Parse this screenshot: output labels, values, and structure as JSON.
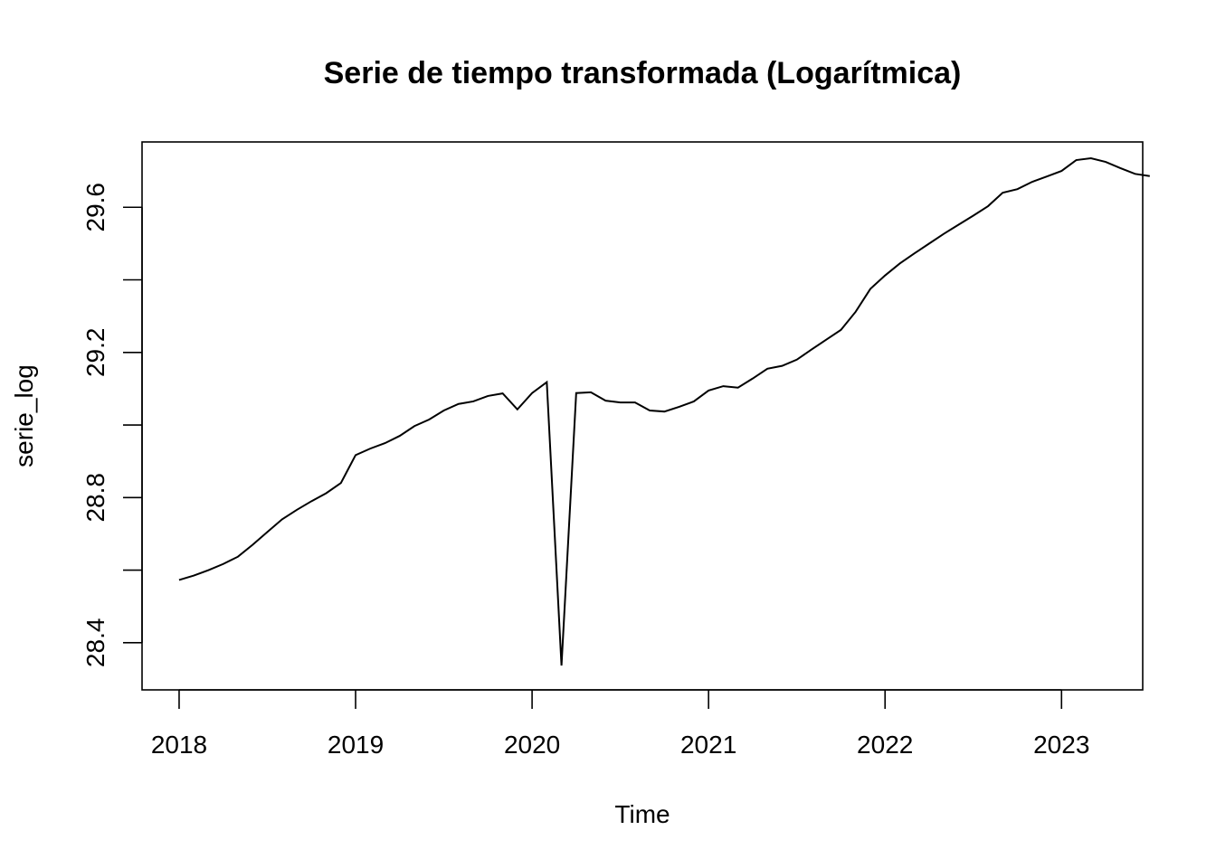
{
  "chart_data": {
    "type": "line",
    "title": "Serie de tiempo transformada (Logarítmica)",
    "xlabel": "Time",
    "ylabel": "serie_log",
    "xlim": [
      2017.79,
      2023.46
    ],
    "ylim": [
      28.27,
      29.78
    ],
    "x_ticks": [
      2018,
      2019,
      2020,
      2021,
      2022,
      2023
    ],
    "x_tick_labels": [
      "2018",
      "2019",
      "2020",
      "2021",
      "2022",
      "2023"
    ],
    "y_ticks": [
      28.4,
      28.6,
      28.8,
      29.0,
      29.2,
      29.4,
      29.6
    ],
    "y_tick_labels": [
      "28.4",
      "",
      "28.8",
      "",
      "29.2",
      "",
      "29.6"
    ],
    "grid": false,
    "series": [
      {
        "x_start": 2018,
        "frequency": 12,
        "values": [
          28.573,
          28.585,
          28.6,
          28.617,
          28.637,
          28.67,
          28.705,
          28.74,
          28.766,
          28.79,
          28.812,
          28.84,
          28.917,
          28.935,
          28.95,
          28.97,
          28.997,
          29.015,
          29.04,
          29.058,
          29.065,
          29.08,
          29.087,
          29.043,
          29.088,
          29.118,
          28.337,
          29.088,
          29.09,
          29.067,
          29.062,
          29.062,
          29.04,
          29.037,
          29.05,
          29.065,
          29.095,
          29.107,
          29.103,
          29.128,
          29.155,
          29.163,
          29.18,
          29.208,
          29.235,
          29.262,
          29.312,
          29.375,
          29.412,
          29.445,
          29.473,
          29.5,
          29.527,
          29.552,
          29.577,
          29.603,
          29.64,
          29.65,
          29.67,
          29.685,
          29.7,
          29.73,
          29.735,
          29.725,
          29.708,
          29.692,
          29.686
        ]
      }
    ]
  }
}
